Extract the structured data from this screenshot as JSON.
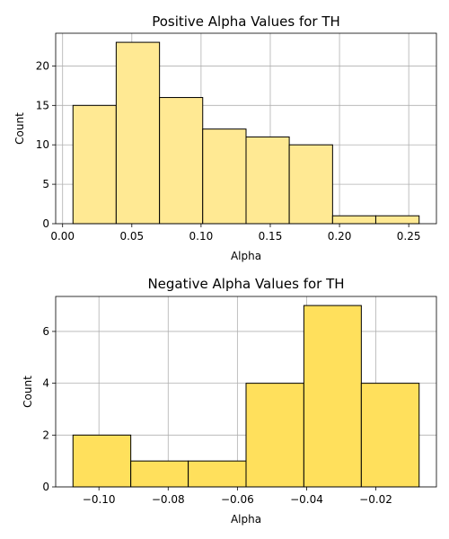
{
  "chart_data": [
    {
      "type": "bar",
      "title": "Positive Alpha Values for TH",
      "xlabel": "Alpha",
      "ylabel": "Count",
      "bin_edges": [
        0.0075,
        0.0387,
        0.07,
        0.1012,
        0.1325,
        0.1637,
        0.195,
        0.2262,
        0.2575
      ],
      "values": [
        15,
        23,
        16,
        12,
        11,
        10,
        1,
        1
      ],
      "xlim": [
        -0.005,
        0.27
      ],
      "ylim": [
        0,
        24.15
      ],
      "xticks": [
        0.0,
        0.05,
        0.1,
        0.15,
        0.2,
        0.25
      ],
      "xtick_labels": [
        "0.00",
        "0.05",
        "0.10",
        "0.15",
        "0.20",
        "0.25"
      ],
      "yticks": [
        0,
        5,
        10,
        15,
        20
      ],
      "ytick_labels": [
        "0",
        "5",
        "10",
        "15",
        "20"
      ],
      "grid": true,
      "bar_color": "#ffe993",
      "edge_color": "#000000"
    },
    {
      "type": "bar",
      "title": "Negative Alpha Values for TH",
      "xlabel": "Alpha",
      "ylabel": "Count",
      "bin_edges": [
        -0.1075,
        -0.0908,
        -0.0742,
        -0.0575,
        -0.0408,
        -0.0242,
        -0.0075
      ],
      "values": [
        2,
        1,
        1,
        4,
        7,
        4
      ],
      "xlim": [
        -0.1125,
        -0.0025
      ],
      "ylim": [
        0,
        7.35
      ],
      "xticks": [
        -0.1,
        -0.08,
        -0.06,
        -0.04,
        -0.02
      ],
      "xtick_labels": [
        "−0.10",
        "−0.08",
        "−0.06",
        "−0.04",
        "−0.02"
      ],
      "yticks": [
        0,
        2,
        4,
        6
      ],
      "ytick_labels": [
        "0",
        "2",
        "4",
        "6"
      ],
      "grid": true,
      "bar_color": "#ffe05c",
      "edge_color": "#000000"
    }
  ]
}
